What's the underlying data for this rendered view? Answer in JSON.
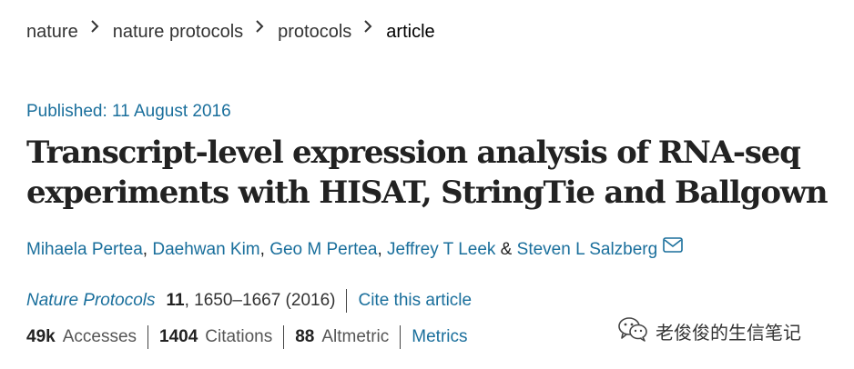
{
  "breadcrumb": {
    "items": [
      {
        "label": "nature"
      },
      {
        "label": "nature protocols"
      },
      {
        "label": "protocols"
      },
      {
        "label": "article"
      }
    ]
  },
  "article": {
    "published": "Published: 11 August 2016",
    "title": "Transcript-level expression analysis of RNA-seq experiments with HISAT, StringTie and Ballgown",
    "authors": [
      {
        "name": "Mihaela Pertea"
      },
      {
        "name": "Daehwan Kim"
      },
      {
        "name": "Geo M Pertea"
      },
      {
        "name": "Jeffrey T Leek"
      },
      {
        "name": "Steven L Salzberg"
      }
    ],
    "author_separator": ", ",
    "author_last_separator": " & ",
    "contact_icon": "envelope-icon",
    "journal": {
      "name": "Nature Protocols",
      "volume": "11",
      "pages_year": ", 1650–1667 (2016)",
      "cite_label": "Cite this article"
    },
    "metrics": {
      "accesses_value": "49k",
      "accesses_label": "Accesses",
      "citations_value": "1404",
      "citations_label": "Citations",
      "altmetric_value": "88",
      "altmetric_label": "Altmetric",
      "metrics_link": "Metrics"
    }
  },
  "watermark": {
    "icon": "wechat-icon",
    "text": "老俊俊的生信笔记"
  },
  "colors": {
    "link": "#1a6f9c",
    "text": "#222222"
  }
}
